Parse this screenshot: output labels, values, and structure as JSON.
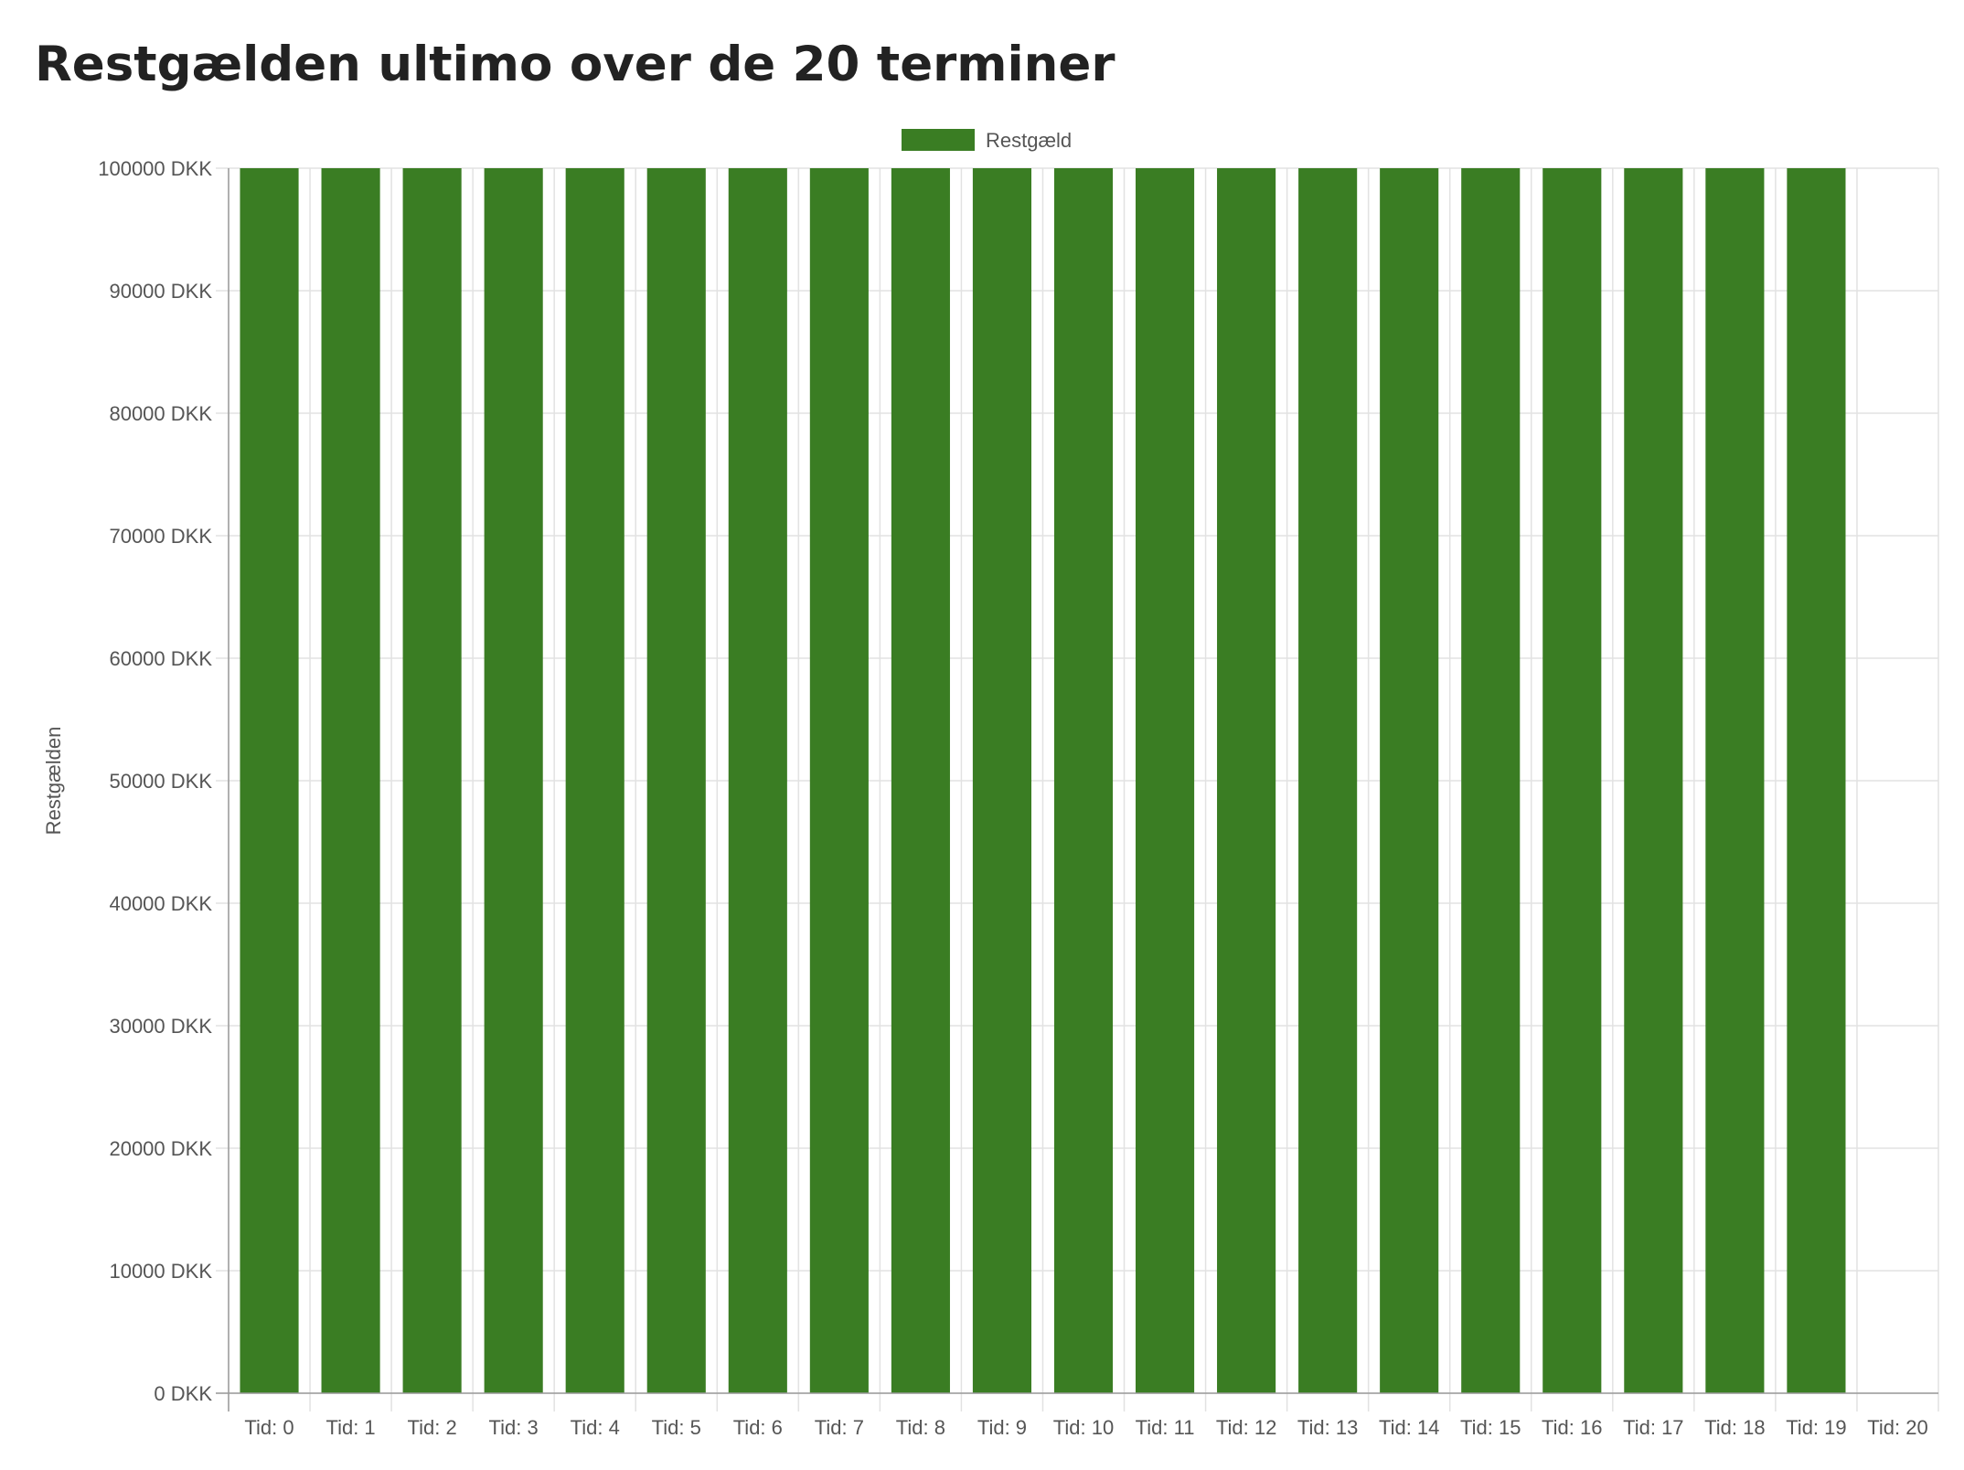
{
  "page": {
    "title": "Restgælden ultimo over de 20 terminer"
  },
  "chart_data": {
    "type": "bar",
    "title": "",
    "xlabel": "",
    "ylabel": "Restgælden",
    "ylim": [
      0,
      100000
    ],
    "y_ticks": [
      0,
      10000,
      20000,
      30000,
      40000,
      50000,
      60000,
      70000,
      80000,
      90000,
      100000
    ],
    "y_tick_suffix": " DKK",
    "grid": true,
    "legend_position": "top-center",
    "categories": [
      "Tid: 0",
      "Tid: 1",
      "Tid: 2",
      "Tid: 3",
      "Tid: 4",
      "Tid: 5",
      "Tid: 6",
      "Tid: 7",
      "Tid: 8",
      "Tid: 9",
      "Tid: 10",
      "Tid: 11",
      "Tid: 12",
      "Tid: 13",
      "Tid: 14",
      "Tid: 15",
      "Tid: 16",
      "Tid: 17",
      "Tid: 18",
      "Tid: 19",
      "Tid: 20"
    ],
    "series": [
      {
        "name": "Restgæld",
        "color": "#3a7d23",
        "values": [
          100000,
          100000,
          100000,
          100000,
          100000,
          100000,
          100000,
          100000,
          100000,
          100000,
          100000,
          100000,
          100000,
          100000,
          100000,
          100000,
          100000,
          100000,
          100000,
          100000,
          0
        ]
      }
    ]
  }
}
